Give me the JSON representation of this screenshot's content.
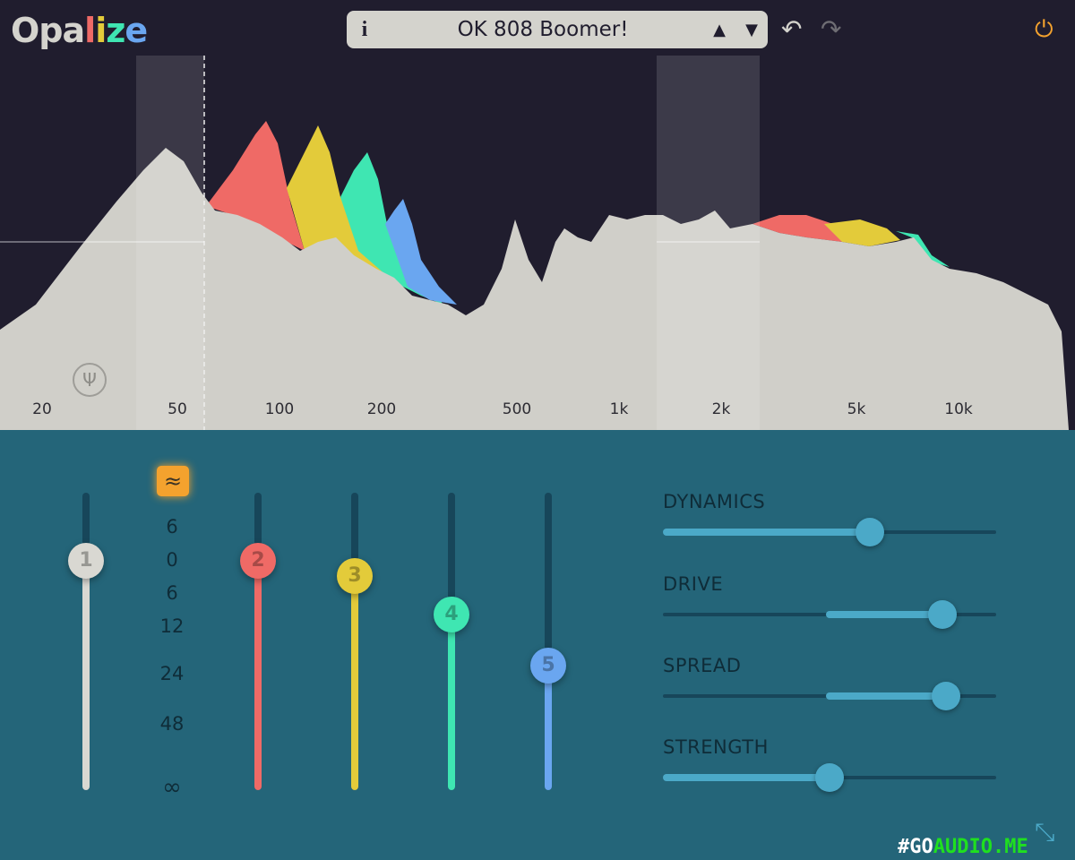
{
  "app": {
    "logo": [
      "Opa",
      "l",
      "i",
      "z",
      "e"
    ],
    "logo_colors": [
      "#d4d3cd",
      "#ef6a66",
      "#e3cb3a",
      "#3fe6b2",
      "#6aa6f0"
    ]
  },
  "preset": {
    "info_label": "i",
    "name": "OK 808 Boomer!",
    "prev_icon": "triangle-up",
    "next_icon": "triangle-down"
  },
  "toolbar": {
    "undo_icon": "undo",
    "redo_icon": "redo",
    "power_icon": "power",
    "power_color": "#f4a22e"
  },
  "spectrum": {
    "freq_labels": [
      "20",
      "50",
      "100",
      "200",
      "500",
      "1k",
      "2k",
      "5k",
      "10k"
    ],
    "tuner_icon": "tuning-fork"
  },
  "faders": [
    {
      "label": "1",
      "level": 0.77,
      "color": "#d9d8d2"
    },
    {
      "label": "2",
      "level": 0.77,
      "color": "#ef6a66"
    },
    {
      "label": "3",
      "level": 0.72,
      "color": "#e3cb3a"
    },
    {
      "label": "4",
      "level": 0.59,
      "color": "#3fe6b2"
    },
    {
      "label": "5",
      "level": 0.42,
      "color": "#6aa6f0"
    }
  ],
  "scale": [
    "6",
    "0",
    "6",
    "12",
    "24",
    "48",
    "∞"
  ],
  "mode_icon": "approx-wave",
  "controls": [
    {
      "label": "DYNAMICS",
      "value": 0.62,
      "bipolar": false
    },
    {
      "label": "DRIVE",
      "value": 0.84,
      "bipolar": true
    },
    {
      "label": "SPREAD",
      "value": 0.85,
      "bipolar": true
    },
    {
      "label": "STRENGTH",
      "value": 0.5,
      "bipolar": false
    }
  ],
  "watermark": {
    "part1": "#GO",
    "part2": "AUDIO.ME"
  }
}
